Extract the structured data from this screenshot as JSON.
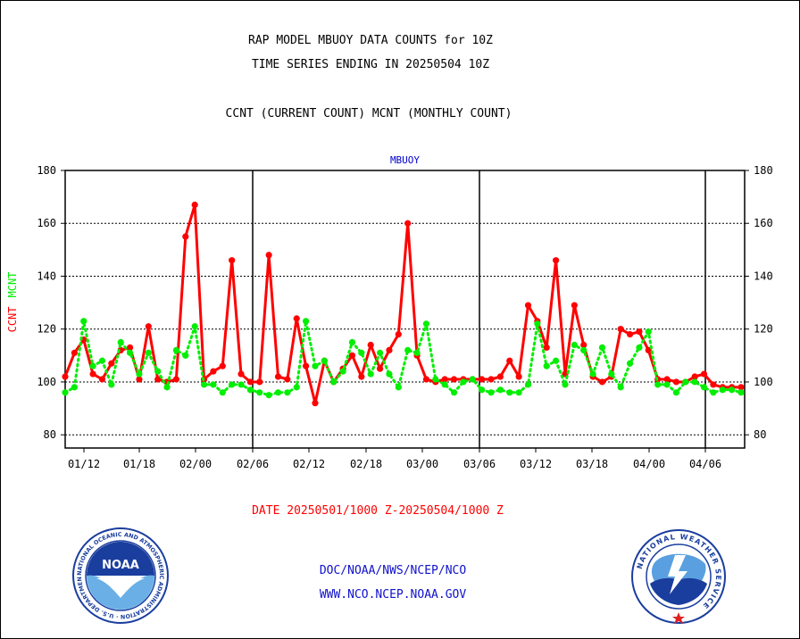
{
  "header": {
    "line1": "RAP MODEL MBUOY DATA COUNTS for 10Z",
    "line2": "TIME SERIES ENDING IN 20250504 10Z",
    "line3": "CCNT (CURRENT COUNT) MCNT (MONTHLY COUNT)"
  },
  "chart_data": {
    "type": "line",
    "title": "MBUOY",
    "ylabel_parts": [
      "CCNT",
      "MCNT"
    ],
    "ylim": [
      75,
      180
    ],
    "yticks": [
      "80",
      "100",
      "120",
      "140",
      "160",
      "180"
    ],
    "xticks": [
      "01/12",
      "01/18",
      "02/00",
      "02/06",
      "02/12",
      "02/18",
      "03/00",
      "03/06",
      "03/12",
      "03/18",
      "04/00",
      "04/06"
    ],
    "x_range": [
      "01/10",
      "04/10"
    ],
    "day_separators": [
      "02/06",
      "03/06",
      "04/06"
    ],
    "grid": true,
    "colors": {
      "ccnt": "#ff0000",
      "mcnt": "#00ee00",
      "axis": "#000000",
      "title": "#0000cc"
    },
    "series": [
      {
        "name": "CCNT",
        "values": [
          102,
          111,
          116,
          103,
          101,
          107,
          112,
          113,
          101,
          121,
          101,
          100,
          101,
          155,
          167,
          101,
          104,
          106,
          146,
          103,
          100,
          100,
          148,
          102,
          101,
          124,
          106,
          92,
          108,
          100,
          105,
          110,
          102,
          114,
          105,
          112,
          118,
          160,
          110,
          101,
          100,
          101,
          101,
          101,
          101,
          101,
          101,
          102,
          108,
          102,
          129,
          123,
          113,
          146,
          103,
          129,
          114,
          102,
          100,
          102,
          120,
          118,
          119,
          112,
          101,
          101,
          100,
          100,
          102,
          103,
          99,
          98,
          98,
          98
        ],
        "line_style": "solid"
      },
      {
        "name": "MCNT",
        "values": [
          96,
          98,
          123,
          106,
          108,
          99,
          115,
          111,
          103,
          111,
          104,
          98,
          112,
          110,
          121,
          99,
          99,
          96,
          99,
          99,
          97,
          96,
          95,
          96,
          96,
          98,
          123,
          106,
          108,
          100,
          104,
          115,
          111,
          103,
          111,
          103,
          98,
          112,
          111,
          122,
          101,
          99,
          96,
          100,
          101,
          97,
          96,
          97,
          96,
          96,
          99,
          122,
          106,
          108,
          99,
          114,
          112,
          103,
          113,
          103,
          98,
          107,
          113,
          119,
          99,
          99,
          96,
          100,
          100,
          98,
          96,
          97,
          97,
          96
        ],
        "line_style": "dotted"
      }
    ]
  },
  "date_range": "DATE 20250501/1000 Z-20250504/1000 Z",
  "footer": {
    "line1": "DOC/NOAA/NWS/NCEP/NCO",
    "line2": "WWW.NCO.NCEP.NOAA.GOV"
  },
  "logos": {
    "noaa": {
      "icon": "noaa-logo",
      "text": "NOAA",
      "ring_text": "NATIONAL OCEANIC AND ATMOSPHERIC ADMINISTRATION · U.S. DEPARTMENT OF COMMERCE",
      "color": "#1a3e9e"
    },
    "nws": {
      "icon": "nws-logo",
      "ring_text": "NATIONAL WEATHER SERVICE",
      "color": "#1a3e9e"
    }
  }
}
